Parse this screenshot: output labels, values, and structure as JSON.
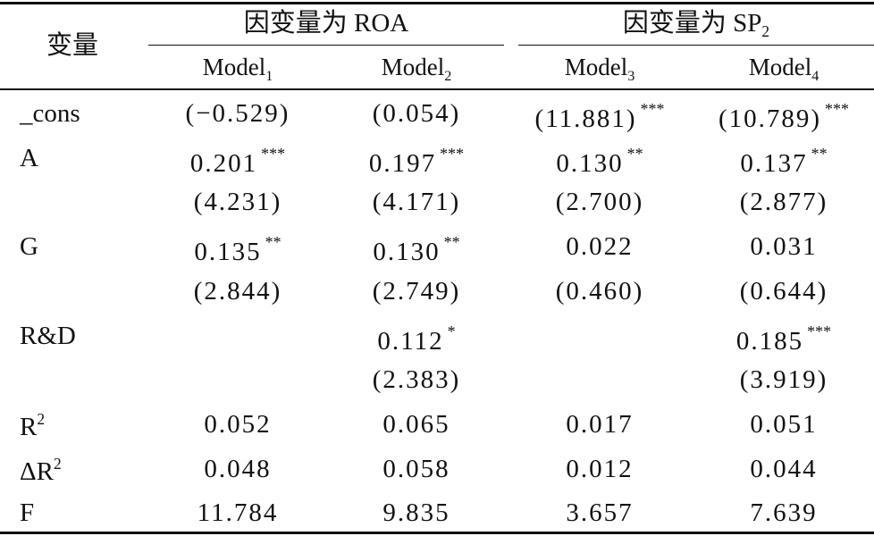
{
  "header": {
    "corner_label": "变量",
    "group1_prefix": "因变量为",
    "group1_var": "ROA",
    "group2_prefix": "因变量为",
    "group2_var": "SP",
    "group2_sub": "2",
    "models": [
      {
        "base": "Model",
        "sub": "1"
      },
      {
        "base": "Model",
        "sub": "2"
      },
      {
        "base": "Model",
        "sub": "3"
      },
      {
        "base": "Model",
        "sub": "4"
      }
    ]
  },
  "rows": [
    {
      "label": "_cons",
      "cells": [
        {
          "text": "(−0.529)",
          "stars": ""
        },
        {
          "text": "(0.054)",
          "stars": ""
        },
        {
          "text": "(11.881)",
          "stars": "***"
        },
        {
          "text": "(10.789)",
          "stars": "***"
        }
      ]
    },
    {
      "label": "A",
      "cells": [
        {
          "text": "0.201",
          "stars": "***"
        },
        {
          "text": "0.197",
          "stars": "***"
        },
        {
          "text": "0.130",
          "stars": "**"
        },
        {
          "text": "0.137",
          "stars": "**"
        }
      ]
    },
    {
      "label": "",
      "cells": [
        {
          "text": "(4.231)",
          "stars": ""
        },
        {
          "text": "(4.171)",
          "stars": ""
        },
        {
          "text": "(2.700)",
          "stars": ""
        },
        {
          "text": "(2.877)",
          "stars": ""
        }
      ]
    },
    {
      "label": "G",
      "cells": [
        {
          "text": "0.135",
          "stars": "**"
        },
        {
          "text": "0.130",
          "stars": "**"
        },
        {
          "text": "0.022",
          "stars": ""
        },
        {
          "text": "0.031",
          "stars": ""
        }
      ]
    },
    {
      "label": "",
      "cells": [
        {
          "text": "(2.844)",
          "stars": ""
        },
        {
          "text": "(2.749)",
          "stars": ""
        },
        {
          "text": "(0.460)",
          "stars": ""
        },
        {
          "text": "(0.644)",
          "stars": ""
        }
      ]
    },
    {
      "label": "R&D",
      "cells": [
        {
          "text": "",
          "stars": ""
        },
        {
          "text": "0.112",
          "stars": "*"
        },
        {
          "text": "",
          "stars": ""
        },
        {
          "text": "0.185",
          "stars": "***"
        }
      ]
    },
    {
      "label": "",
      "cells": [
        {
          "text": "",
          "stars": ""
        },
        {
          "text": "(2.383)",
          "stars": ""
        },
        {
          "text": "",
          "stars": ""
        },
        {
          "text": "(3.919)",
          "stars": ""
        }
      ]
    },
    {
      "label": "R",
      "label_sup": "2",
      "cells": [
        {
          "text": "0.052",
          "stars": ""
        },
        {
          "text": "0.065",
          "stars": ""
        },
        {
          "text": "0.017",
          "stars": ""
        },
        {
          "text": "0.051",
          "stars": ""
        }
      ]
    },
    {
      "label": "ΔR",
      "label_sup": "2",
      "cells": [
        {
          "text": "0.048",
          "stars": ""
        },
        {
          "text": "0.058",
          "stars": ""
        },
        {
          "text": "0.012",
          "stars": ""
        },
        {
          "text": "0.044",
          "stars": ""
        }
      ]
    },
    {
      "label": "F",
      "cells": [
        {
          "text": "11.784",
          "stars": ""
        },
        {
          "text": "9.835",
          "stars": ""
        },
        {
          "text": "3.657",
          "stars": ""
        },
        {
          "text": "7.639",
          "stars": ""
        }
      ]
    }
  ]
}
